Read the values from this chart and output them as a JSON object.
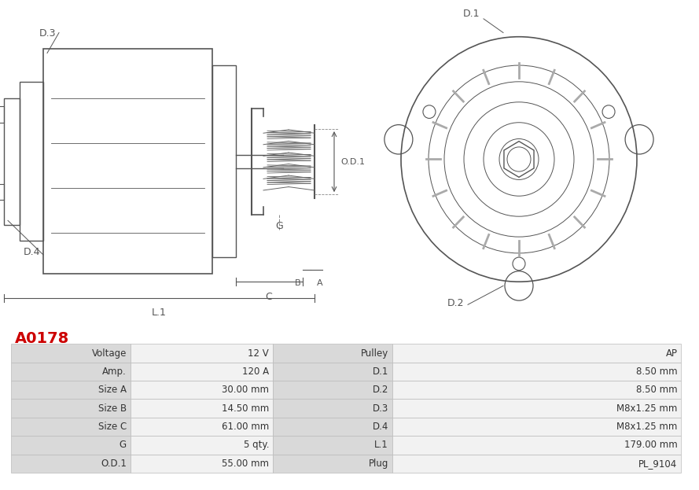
{
  "title": "A0178",
  "title_color": "#cc0000",
  "bg_color": "#ffffff",
  "table_rows": [
    [
      "Voltage",
      "12 V",
      "Pulley",
      "AP"
    ],
    [
      "Amp.",
      "120 A",
      "D.1",
      "8.50 mm"
    ],
    [
      "Size A",
      "30.00 mm",
      "D.2",
      "8.50 mm"
    ],
    [
      "Size B",
      "14.50 mm",
      "D.3",
      "M8x1.25 mm"
    ],
    [
      "Size C",
      "61.00 mm",
      "D.4",
      "M8x1.25 mm"
    ],
    [
      "G",
      "5 qty.",
      "L.1",
      "179.00 mm"
    ],
    [
      "O.D.1",
      "55.00 mm",
      "Plug",
      "PL_9104"
    ]
  ],
  "col_header_bg": "#d9d9d9",
  "col_value_bg": "#f2f2f2",
  "table_text_color": "#333333",
  "line_color": "#888888",
  "diagram_line_color": "#555555"
}
